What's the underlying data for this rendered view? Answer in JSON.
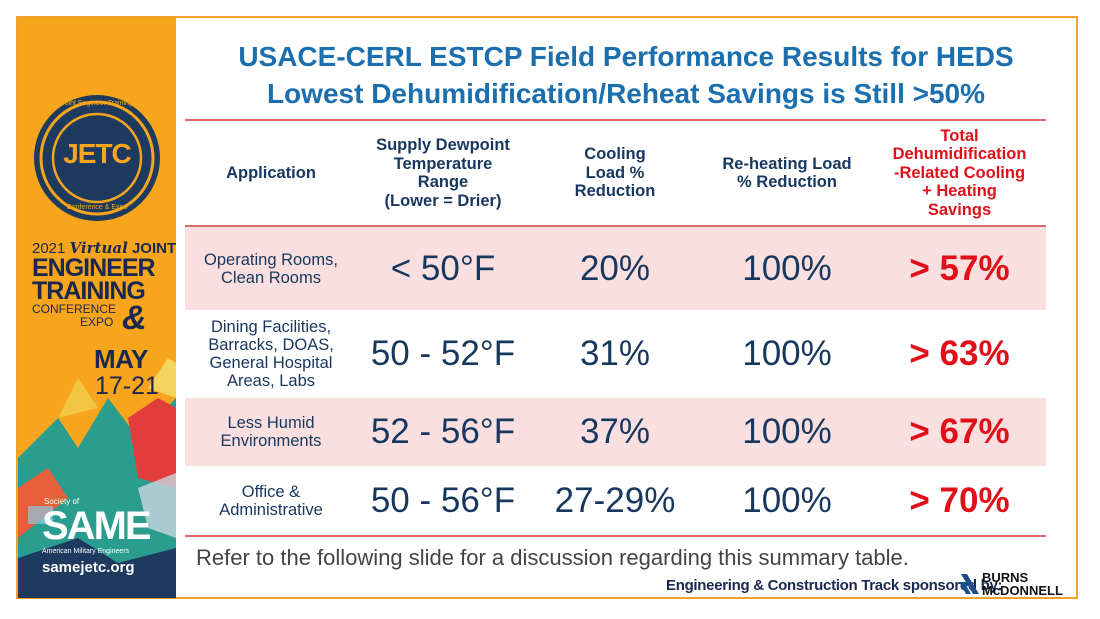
{
  "header": {
    "title_line1": "USACE-CERL ESTCP Field Performance Results for HEDS",
    "title_line2": "Lowest Dehumidification/Reheat Savings is Still >50%"
  },
  "sidebar": {
    "logo_text": "JETC",
    "seal_top": "Joint Engineer Training",
    "seal_bottom": "Conference & Expo",
    "event_year": "2021",
    "event_virtual": "Virtual",
    "event_joint": "JOINT",
    "event_engineer": "ENGINEER",
    "event_training": "TRAINING",
    "event_conference": "CONFERENCE",
    "event_expo": "EXPO",
    "event_amp": "&",
    "month": "MAY",
    "dates": "17-21",
    "society_of": "Society of",
    "same_logo": "SAME",
    "same_sub": "American Military Engineers",
    "website": "samejetc.org"
  },
  "table": {
    "headers": [
      "Application",
      "Supply Dewpoint Temperature Range (Lower = Drier)",
      "Cooling Load % Reduction",
      "Re-heating Load % Reduction",
      "Total Dehumidification -Related Cooling + Heating Savings"
    ],
    "header_lines": [
      [
        "Application"
      ],
      [
        "Supply Dewpoint",
        "Temperature",
        "Range",
        "(Lower = Drier)"
      ],
      [
        "Cooling",
        "Load %",
        "Reduction"
      ],
      [
        "Re-heating Load",
        "% Reduction"
      ],
      [
        "Total",
        "Dehumidification",
        "-Related Cooling",
        "+ Heating",
        "Savings"
      ]
    ],
    "rows": [
      {
        "application": [
          "Operating Rooms,",
          "Clean Rooms"
        ],
        "dewpoint": "< 50°F",
        "cooling": "20%",
        "reheat": "100%",
        "savings": "> 57%"
      },
      {
        "application": [
          "Dining Facilities,",
          "Barracks, DOAS,",
          "General Hospital",
          "Areas, Labs"
        ],
        "dewpoint": "50 - 52°F",
        "cooling": "31%",
        "reheat": "100%",
        "savings": "> 63%"
      },
      {
        "application": [
          "Less Humid",
          "Environments"
        ],
        "dewpoint": "52 - 56°F",
        "cooling": "37%",
        "reheat": "100%",
        "savings": "> 67%"
      },
      {
        "application": [
          "Office &",
          "Administrative"
        ],
        "dewpoint": "50 - 56°F",
        "cooling": "27-29%",
        "reheat": "100%",
        "savings": "> 70%"
      }
    ]
  },
  "footnote": "Refer to the following slide for a discussion regarding this summary table.",
  "sponsor": {
    "label": "Engineering & Construction Track sponsored by:",
    "company_line1": "BURNS",
    "company_line2": "McDONNELL"
  },
  "colors": {
    "title_blue": "#1b6fae",
    "navy": "#17375e",
    "highlight_red": "#e0101a",
    "row_shade": "#f9dfdf",
    "sidebar_orange": "#f6a51c"
  }
}
